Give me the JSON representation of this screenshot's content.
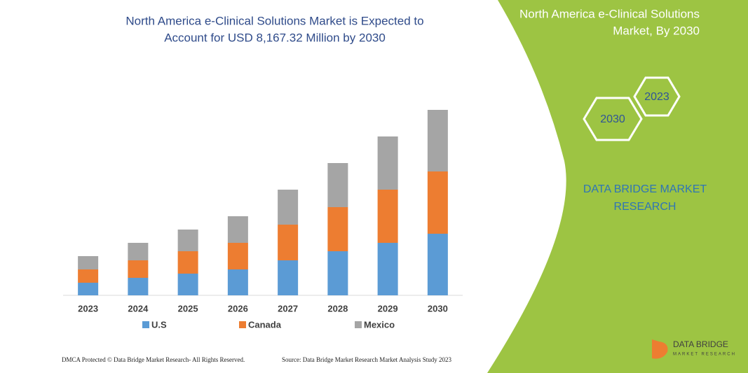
{
  "chart_data": {
    "type": "stacked_bar",
    "title": [
      "North America e-Clinical Solutions Market is Expected to",
      "Account for USD 8,167.32 Million by 2030"
    ],
    "categories": [
      "2023",
      "2024",
      "2025",
      "2026",
      "2027",
      "2028",
      "2029",
      "2030"
    ],
    "series": [
      {
        "name": "U.S",
        "color": "#5b9bd5",
        "values": [
          18,
          25,
          31,
          37,
          50,
          63,
          75,
          88
        ]
      },
      {
        "name": "Canada",
        "color": "#ed7d31",
        "values": [
          19,
          25,
          32,
          38,
          51,
          63,
          76,
          89
        ]
      },
      {
        "name": "Mexico",
        "color": "#a5a5a5",
        "values": [
          19,
          25,
          31,
          38,
          50,
          63,
          76,
          88
        ]
      }
    ],
    "ylim": [
      0,
      270
    ],
    "grid": false
  },
  "panel": {
    "title": [
      "North America e-Clinical Solutions",
      "Market, By 2030"
    ],
    "hex_years": [
      "2023",
      "2030"
    ],
    "brand": [
      "DATA BRIDGE MARKET",
      "RESEARCH"
    ]
  },
  "logo": {
    "name": "DATA BRIDGE",
    "tagline": "MARKET RESEARCH"
  },
  "footer": {
    "left": "DMCA Protected © Data Bridge Market Research-  All Rights Reserved.",
    "right": "Source: Data Bridge Market Research  Market Analysis Study 2023"
  }
}
